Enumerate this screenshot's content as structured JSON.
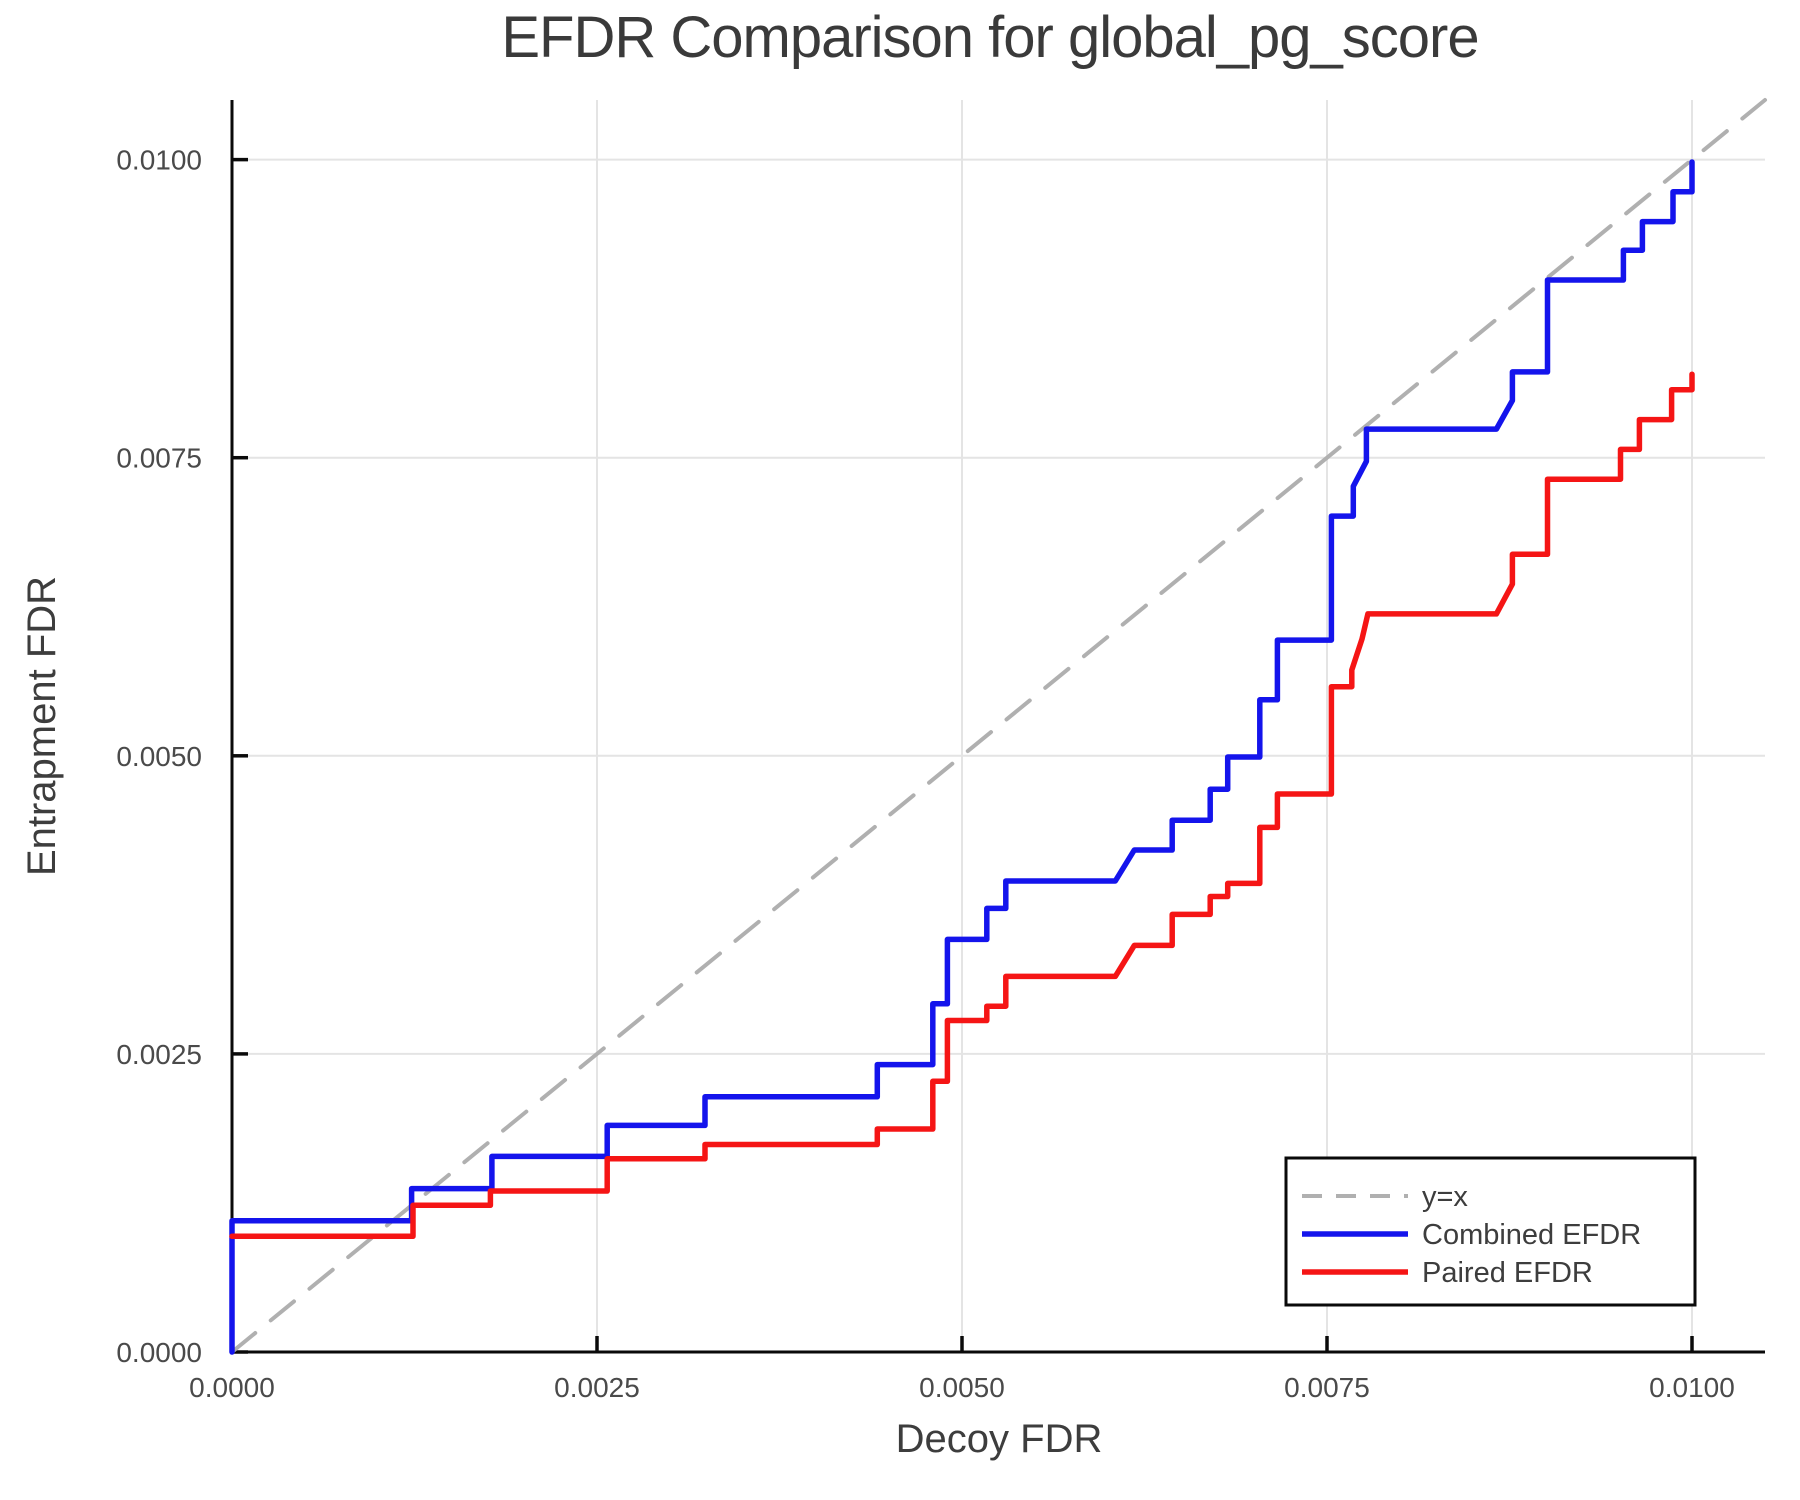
{
  "page": {
    "background": "#ffffff",
    "text_color": "#3d3d3d"
  },
  "chart_data": {
    "type": "line",
    "title": "EFDR Comparison for global_pg_score",
    "xlabel": "Decoy FDR",
    "ylabel": "Entrapment FDR",
    "xlim": [
      0,
      0.0105
    ],
    "ylim": [
      0,
      0.0105
    ],
    "grid": true,
    "grid_color": "#e4e4e4",
    "axis_color": "#0a0a0a",
    "legend_position": "bottom-right",
    "xticks": {
      "values": [
        0.0,
        0.0025,
        0.005,
        0.0075,
        0.01
      ],
      "labels": [
        "0.0000",
        "0.0025",
        "0.0050",
        "0.0075",
        "0.0100"
      ]
    },
    "yticks": {
      "values": [
        0.0,
        0.0025,
        0.005,
        0.0075,
        0.01
      ],
      "labels": [
        "0.0000",
        "0.0025",
        "0.0050",
        "0.0075",
        "0.0100"
      ]
    },
    "series": [
      {
        "name": "y=x",
        "role": "reference-line",
        "color": "#b0b0b0",
        "dash": "30 20",
        "width": 4,
        "points": [
          [
            0,
            0
          ],
          [
            0.0105,
            0.0105
          ]
        ]
      },
      {
        "name": "Combined EFDR",
        "role": "step-curve",
        "color": "#1414ec",
        "dash": "",
        "width": 5.5,
        "points": [
          [
            0,
            0
          ],
          [
            0,
            0.0011
          ],
          [
            0.00123,
            0.0011
          ],
          [
            0.00123,
            0.00137
          ],
          [
            0.00178,
            0.00137
          ],
          [
            0.00178,
            0.00164
          ],
          [
            0.00257,
            0.00164
          ],
          [
            0.00257,
            0.0019
          ],
          [
            0.00324,
            0.0019
          ],
          [
            0.00324,
            0.00214
          ],
          [
            0.00442,
            0.00214
          ],
          [
            0.00442,
            0.00241
          ],
          [
            0.0048,
            0.00241
          ],
          [
            0.0048,
            0.00292
          ],
          [
            0.0049,
            0.00292
          ],
          [
            0.0049,
            0.00346
          ],
          [
            0.00517,
            0.00346
          ],
          [
            0.00517,
            0.00372
          ],
          [
            0.0053,
            0.00372
          ],
          [
            0.0053,
            0.00395
          ],
          [
            0.00605,
            0.00395
          ],
          [
            0.00618,
            0.00421
          ],
          [
            0.00644,
            0.00421
          ],
          [
            0.00644,
            0.00446
          ],
          [
            0.0067,
            0.00446
          ],
          [
            0.0067,
            0.00472
          ],
          [
            0.00682,
            0.00472
          ],
          [
            0.00682,
            0.00499
          ],
          [
            0.00704,
            0.00499
          ],
          [
            0.00704,
            0.00547
          ],
          [
            0.00716,
            0.00547
          ],
          [
            0.00716,
            0.00597
          ],
          [
            0.00753,
            0.00597
          ],
          [
            0.00753,
            0.00701
          ],
          [
            0.00768,
            0.00701
          ],
          [
            0.00768,
            0.00726
          ],
          [
            0.00777,
            0.00747
          ],
          [
            0.00777,
            0.00774
          ],
          [
            0.00866,
            0.00774
          ],
          [
            0.00877,
            0.00798
          ],
          [
            0.00877,
            0.00822
          ],
          [
            0.00901,
            0.00822
          ],
          [
            0.00901,
            0.00899
          ],
          [
            0.00953,
            0.00899
          ],
          [
            0.00953,
            0.00924
          ],
          [
            0.00966,
            0.00924
          ],
          [
            0.00966,
            0.00948
          ],
          [
            0.00987,
            0.00948
          ],
          [
            0.00987,
            0.00973
          ],
          [
            0.01,
            0.00973
          ],
          [
            0.01,
            0.00998
          ]
        ]
      },
      {
        "name": "Paired EFDR",
        "role": "step-curve",
        "color": "#f51515",
        "dash": "",
        "width": 5.5,
        "points": [
          [
            0,
            0.00097
          ],
          [
            0.00124,
            0.00097
          ],
          [
            0.00124,
            0.00123
          ],
          [
            0.00177,
            0.00123
          ],
          [
            0.00177,
            0.00135
          ],
          [
            0.00257,
            0.00135
          ],
          [
            0.00257,
            0.00162
          ],
          [
            0.00324,
            0.00162
          ],
          [
            0.00324,
            0.00174
          ],
          [
            0.00442,
            0.00174
          ],
          [
            0.00442,
            0.00187
          ],
          [
            0.0048,
            0.00187
          ],
          [
            0.0048,
            0.00227
          ],
          [
            0.0049,
            0.00227
          ],
          [
            0.0049,
            0.00278
          ],
          [
            0.00517,
            0.00278
          ],
          [
            0.00517,
            0.0029
          ],
          [
            0.0053,
            0.0029
          ],
          [
            0.0053,
            0.00315
          ],
          [
            0.00605,
            0.00315
          ],
          [
            0.00618,
            0.00341
          ],
          [
            0.00644,
            0.00341
          ],
          [
            0.00644,
            0.00367
          ],
          [
            0.0067,
            0.00367
          ],
          [
            0.0067,
            0.00382
          ],
          [
            0.00682,
            0.00382
          ],
          [
            0.00682,
            0.00393
          ],
          [
            0.00704,
            0.00393
          ],
          [
            0.00704,
            0.0044
          ],
          [
            0.00716,
            0.0044
          ],
          [
            0.00716,
            0.00468
          ],
          [
            0.00753,
            0.00468
          ],
          [
            0.00753,
            0.00558
          ],
          [
            0.00767,
            0.00558
          ],
          [
            0.00767,
            0.00572
          ],
          [
            0.00774,
            0.00598
          ],
          [
            0.00778,
            0.00619
          ],
          [
            0.00866,
            0.00619
          ],
          [
            0.00877,
            0.00644
          ],
          [
            0.00877,
            0.00669
          ],
          [
            0.00901,
            0.00669
          ],
          [
            0.00901,
            0.00732
          ],
          [
            0.00951,
            0.00732
          ],
          [
            0.00951,
            0.00757
          ],
          [
            0.00964,
            0.00757
          ],
          [
            0.00964,
            0.00782
          ],
          [
            0.00986,
            0.00782
          ],
          [
            0.00986,
            0.00807
          ],
          [
            0.01,
            0.00807
          ],
          [
            0.01,
            0.0082
          ]
        ]
      }
    ]
  }
}
